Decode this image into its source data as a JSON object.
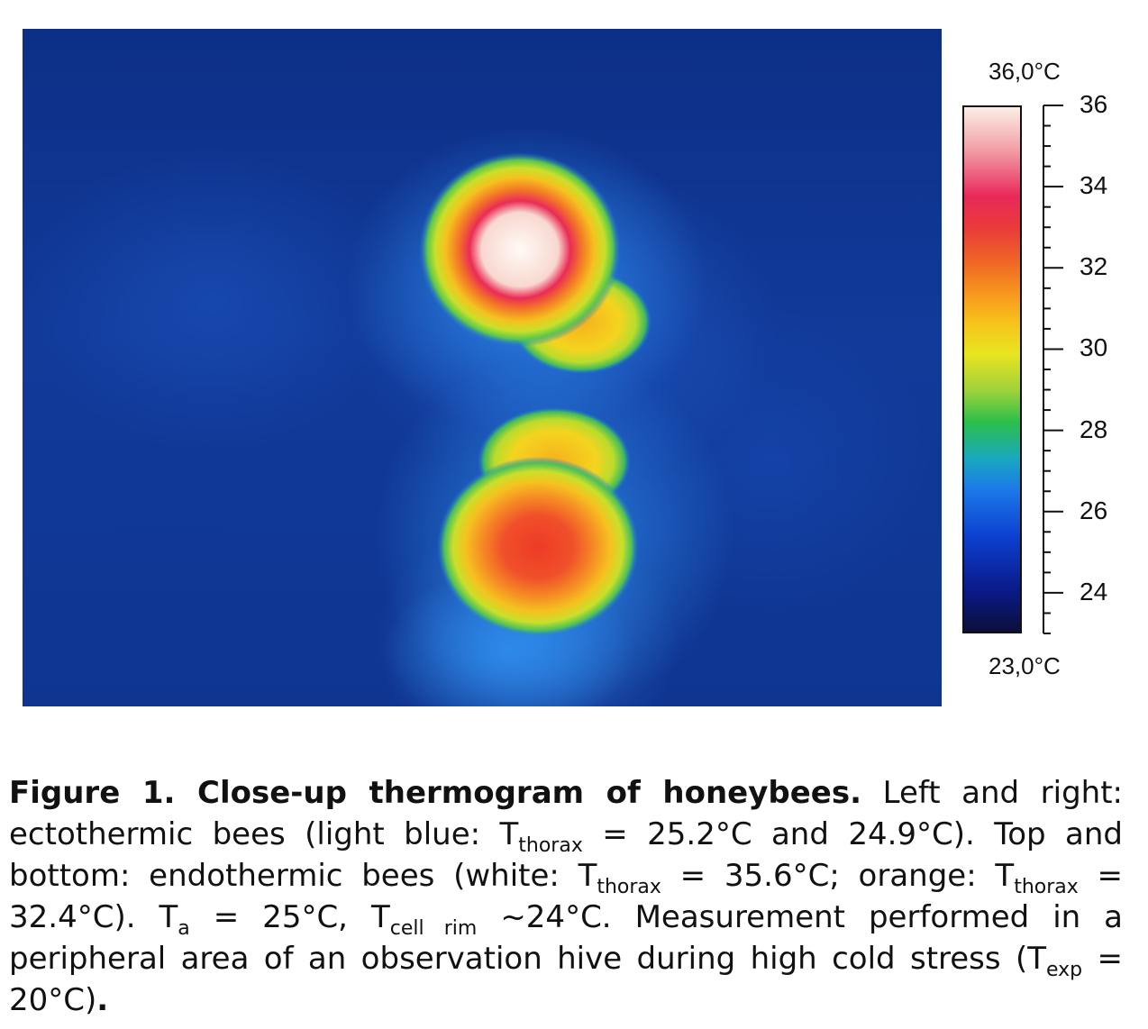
{
  "figure": {
    "colorbar": {
      "max_label": "36,0°C",
      "min_label": "23,0°C",
      "min": 23.0,
      "max": 36.0,
      "ticks": [
        "36",
        "34",
        "32",
        "30",
        "28",
        "26",
        "24"
      ]
    },
    "caption": {
      "title": "Figure 1. Close-up thermogram of honeybees.",
      "s1": "Left and right: ectothermic bees (light blue: T",
      "sub_thorax": "thorax",
      "s2": " = 25.2°C and 24.9°C). Top and bottom: endothermic bees (white: T",
      "s3": " = 35.6°C; orange: T",
      "s4": " = 32.4°C). T",
      "sub_a": "a",
      "s5": " = 25°C, T",
      "sub_cell_rim": "cell rim",
      "s6": " ~24°C. Measurement performed in a peripheral area of an observation hive during high cold stress (T",
      "sub_exp": "exp",
      "s7": " = 20°C)",
      "end": "."
    }
  }
}
